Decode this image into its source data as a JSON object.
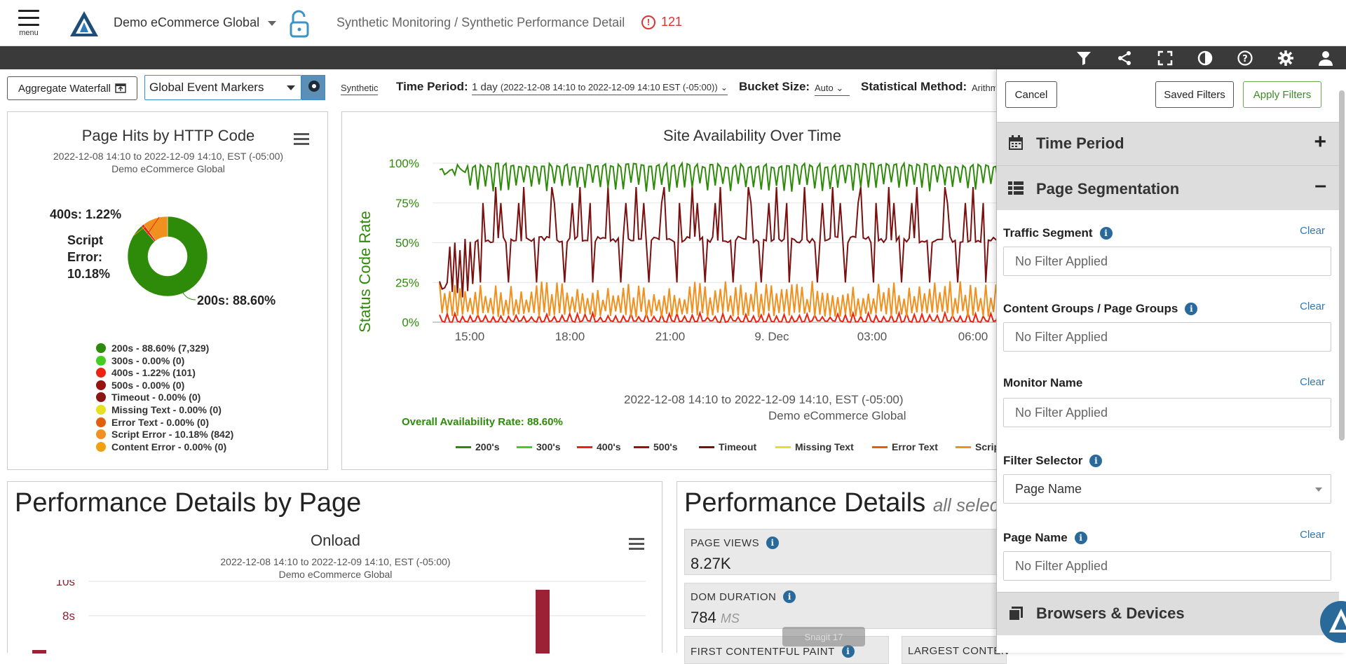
{
  "header": {
    "menu_label": "menu",
    "app_name": "Demo eCommerce Global",
    "breadcrumb": "Synthetic Monitoring / Synthetic Performance Detail",
    "alert_count": "121"
  },
  "toolbar": {
    "icons": [
      "filter-icon",
      "share-icon",
      "fullscreen-icon",
      "contrast-icon",
      "help-icon",
      "settings-icon",
      "user-icon"
    ]
  },
  "filters": {
    "aggregate_waterfall": "Aggregate Waterfall",
    "event_markers": "Global Event Markers",
    "synthetic": "Synthetic",
    "time_period_label": "Time Period:",
    "time_period_value": "1 day",
    "time_period_range": "(2022-12-08 14:10 to 2022-12-09 14:10 EST (-05:00))",
    "bucket_label": "Bucket Size:",
    "bucket_value": "Auto",
    "stat_label": "Statistical Method:",
    "stat_value": "Arithm"
  },
  "pie": {
    "title": "Page Hits by HTTP Code",
    "subtitle": "2022-12-08 14:10 to 2022-12-09 14:10, EST (-05:00)",
    "subtitle2": "Demo eCommerce Global",
    "label_400": "400s: 1.22%",
    "label_script_1": "Script",
    "label_script_2": "Error:",
    "label_script_3": "10.18%",
    "label_200": "200s: 88.60%",
    "legend": [
      {
        "label": "200s - 88.60% (7,329)",
        "color": "#2e8b0a"
      },
      {
        "label": "300s - 0.00% (0)",
        "color": "#44cc22"
      },
      {
        "label": "400s - 1.22% (101)",
        "color": "#ee2211"
      },
      {
        "label": "500s - 0.00% (0)",
        "color": "#991111"
      },
      {
        "label": "Timeout - 0.00% (0)",
        "color": "#8a1515"
      },
      {
        "label": "Missing Text - 0.00% (0)",
        "color": "#e6e022"
      },
      {
        "label": "Error Text - 0.00% (0)",
        "color": "#e06010"
      },
      {
        "label": "Script Error - 10.18% (842)",
        "color": "#f0901e"
      },
      {
        "label": "Content Error - 0.00% (0)",
        "color": "#f0a010"
      }
    ]
  },
  "availability": {
    "title": "Site Availability Over Time",
    "ylabel": "Status Code Rate",
    "subtitle": "2022-12-08 14:10 to 2022-12-09 14:10, EST (-05:00)",
    "subtitle2": "Demo eCommerce Global",
    "overall": "Overall Availability Rate: 88.60%",
    "legend": [
      {
        "label": "200's",
        "color": "#2e8b0a"
      },
      {
        "label": "300's",
        "color": "#44cc22"
      },
      {
        "label": "400's",
        "color": "#ee2211"
      },
      {
        "label": "500's",
        "color": "#991111"
      },
      {
        "label": "Timeout",
        "color": "#7a1010"
      },
      {
        "label": "Missing Text",
        "color": "#e6e022"
      },
      {
        "label": "Error Text",
        "color": "#e06010"
      },
      {
        "label": "Scrip",
        "color": "#f0901e"
      }
    ]
  },
  "perf_page": {
    "heading": "Performance Details by Page",
    "chart_title": "Onload",
    "subtitle": "2022-12-08 14:10 to 2022-12-09 14:10, EST (-05:00)",
    "subtitle2": "Demo eCommerce Global"
  },
  "perf_details": {
    "heading": "Performance Details",
    "heading_suffix": "all select",
    "page_views_label": "PAGE VIEWS",
    "page_views_value": "8.27K",
    "dom_label": "DOM DURATION",
    "dom_value": "784",
    "dom_unit": "MS",
    "fcp_label": "FIRST CONTENTFUL PAINT",
    "lcp_label": "LARGEST CONTEN",
    "snagit": "Snagit 17"
  },
  "sidebar": {
    "cancel": "Cancel",
    "saved_filters": "Saved Filters",
    "apply_filters": "Apply Filters",
    "sections": {
      "time_period": "Time Period",
      "page_segmentation": "Page Segmentation",
      "browsers_devices": "Browsers & Devices"
    },
    "fields": [
      {
        "label": "Traffic Segment",
        "clear": "Clear",
        "value": "No Filter Applied"
      },
      {
        "label": "Content Groups / Page Groups",
        "clear": "Clear",
        "value": "No Filter Applied"
      },
      {
        "label": "Monitor Name",
        "clear": "Clear",
        "value": "No Filter Applied"
      },
      {
        "label": "Filter Selector",
        "value": "Page Name"
      },
      {
        "label": "Page Name",
        "clear": "Clear",
        "value": "No Filter Applied"
      }
    ]
  },
  "chart_data": [
    {
      "type": "pie",
      "title": "Page Hits by HTTP Code",
      "categories": [
        "200s",
        "300s",
        "400s",
        "500s",
        "Timeout",
        "Missing Text",
        "Error Text",
        "Script Error",
        "Content Error"
      ],
      "values": [
        88.6,
        0.0,
        1.22,
        0.0,
        0.0,
        0.0,
        0.0,
        10.18,
        0.0
      ],
      "counts": [
        7329,
        0,
        101,
        0,
        0,
        0,
        0,
        842,
        0
      ]
    },
    {
      "type": "line",
      "title": "Site Availability Over Time",
      "ylabel": "Status Code Rate",
      "ylim": [
        0,
        100
      ],
      "yticks": [
        "0%",
        "25%",
        "50%",
        "75%",
        "100%"
      ],
      "xticks": [
        "15:00",
        "18:00",
        "21:00",
        "9. Dec",
        "03:00",
        "06:00"
      ],
      "series": [
        {
          "name": "200's",
          "approx_range": [
            80,
            100
          ]
        },
        {
          "name": "Timeout",
          "approx_range": [
            10,
            90
          ]
        },
        {
          "name": "Script Error",
          "approx_range": [
            0,
            25
          ]
        },
        {
          "name": "400's",
          "approx_range": [
            0,
            6
          ]
        }
      ]
    },
    {
      "type": "bar",
      "title": "Onload",
      "yticks": [
        "8s",
        "10s"
      ]
    }
  ]
}
